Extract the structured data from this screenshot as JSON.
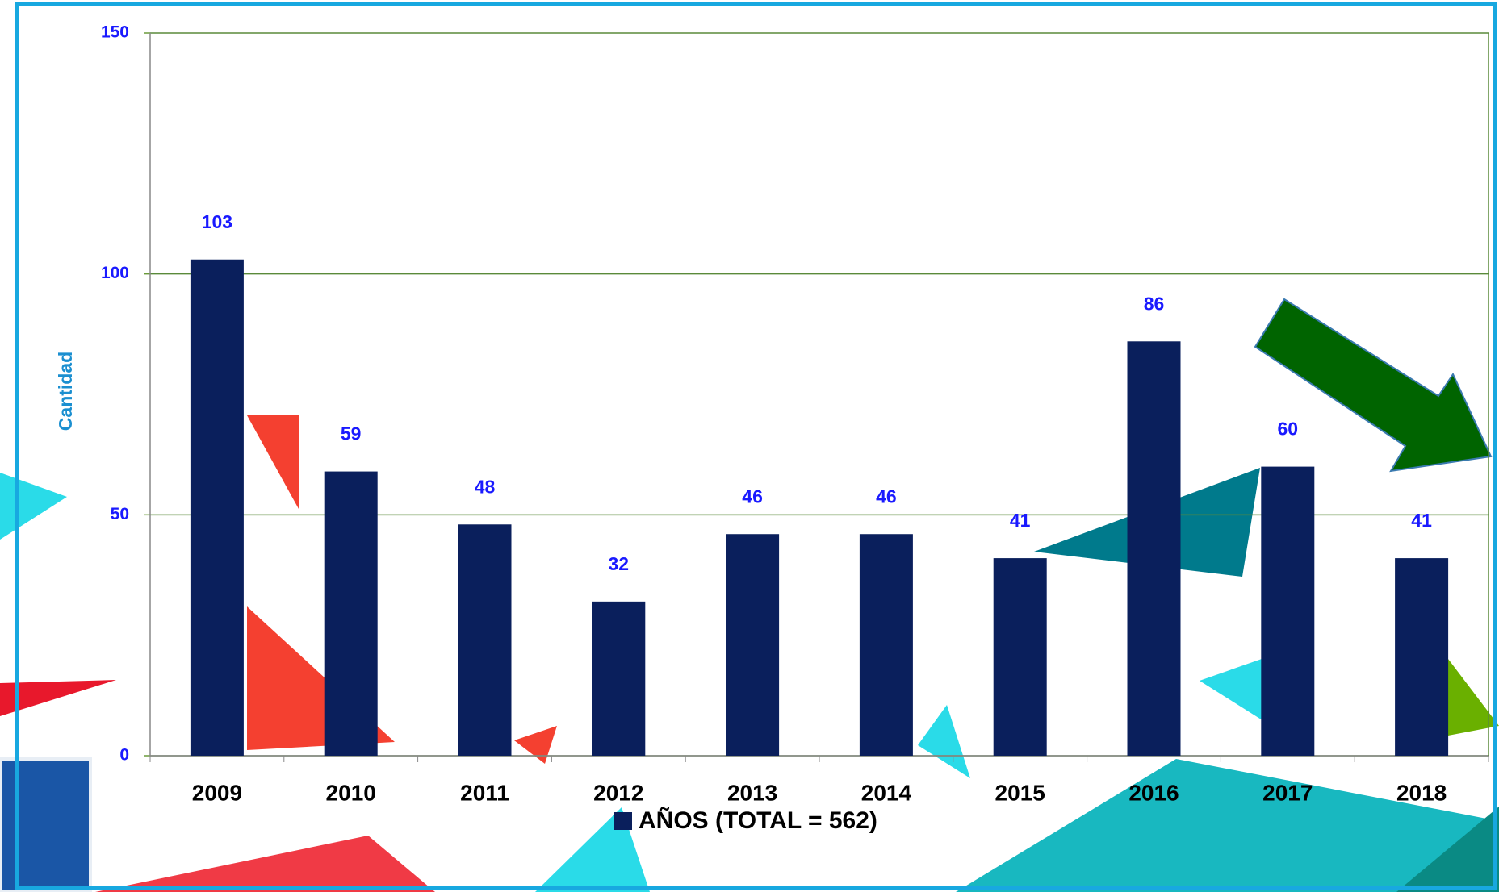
{
  "chart_data": {
    "type": "bar",
    "y_label": "Cantidad",
    "categories": [
      "2009",
      "2010",
      "2011",
      "2012",
      "2013",
      "2014",
      "2015",
      "2016",
      "2017",
      "2018"
    ],
    "series": [
      {
        "name": "AÑOS (TOTAL = 562)",
        "color": "#0a1f5c",
        "values": [
          103,
          59,
          48,
          32,
          46,
          46,
          41,
          86,
          60,
          41
        ]
      }
    ],
    "ylim": [
      0,
      150
    ],
    "yticks": [
      0,
      50,
      100,
      150
    ],
    "grid": true,
    "legend": "bottom"
  }
}
